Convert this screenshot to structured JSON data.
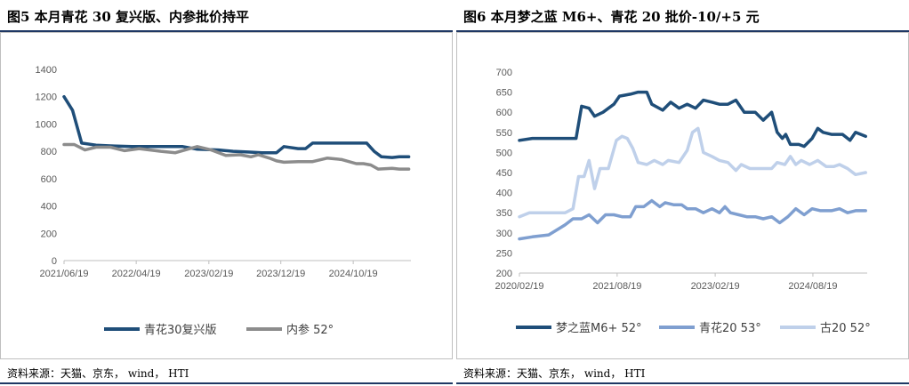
{
  "charts": [
    {
      "title": "图5   本月青花 30 复兴版、内参批价持平",
      "source": "资料来源：天猫、京东， wind， HTI",
      "chart_data": {
        "type": "line",
        "x_tick_labels": [
          "2021/06/19",
          "2022/04/19",
          "2023/02/19",
          "2023/12/19",
          "2024/10/19"
        ],
        "x_range": [
          "2021/06/19",
          "2025/06/19"
        ],
        "ylim": [
          0,
          1400
        ],
        "y_ticks": [
          0,
          200,
          400,
          600,
          800,
          1000,
          1200,
          1400
        ],
        "grid": false,
        "legend_position": "bottom",
        "series": [
          {
            "name": "青花30复兴版",
            "color": "#1f4e79",
            "points": [
              [
                "2021/06/19",
                1200
              ],
              [
                "2021/07/25",
                1100
              ],
              [
                "2021/09/01",
                860
              ],
              [
                "2021/11/01",
                845
              ],
              [
                "2022/01/01",
                840
              ],
              [
                "2022/04/01",
                835
              ],
              [
                "2022/07/01",
                835
              ],
              [
                "2022/11/01",
                835
              ],
              [
                "2023/01/01",
                815
              ],
              [
                "2023/04/01",
                810
              ],
              [
                "2023/06/01",
                800
              ],
              [
                "2023/08/01",
                795
              ],
              [
                "2023/10/01",
                790
              ],
              [
                "2023/12/01",
                790
              ],
              [
                "2024/01/01",
                835
              ],
              [
                "2024/03/01",
                820
              ],
              [
                "2024/04/01",
                820
              ],
              [
                "2024/05/01",
                860
              ],
              [
                "2024/07/01",
                860
              ],
              [
                "2024/09/01",
                860
              ],
              [
                "2024/11/01",
                860
              ],
              [
                "2024/12/15",
                860
              ],
              [
                "2025/01/15",
                800
              ],
              [
                "2025/02/15",
                760
              ],
              [
                "2025/04/01",
                755
              ],
              [
                "2025/05/01",
                760
              ],
              [
                "2025/06/10",
                760
              ]
            ]
          },
          {
            "name": "内参 52°",
            "color": "#8c8c8c",
            "points": [
              [
                "2021/06/19",
                850
              ],
              [
                "2021/08/01",
                850
              ],
              [
                "2021/09/15",
                810
              ],
              [
                "2021/11/01",
                830
              ],
              [
                "2022/01/01",
                830
              ],
              [
                "2022/03/01",
                805
              ],
              [
                "2022/05/01",
                820
              ],
              [
                "2022/08/01",
                800
              ],
              [
                "2022/10/01",
                790
              ],
              [
                "2022/12/01",
                820
              ],
              [
                "2023/01/01",
                835
              ],
              [
                "2023/03/01",
                810
              ],
              [
                "2023/05/01",
                770
              ],
              [
                "2023/07/01",
                775
              ],
              [
                "2023/08/15",
                760
              ],
              [
                "2023/09/15",
                775
              ],
              [
                "2023/11/01",
                750
              ],
              [
                "2023/12/01",
                730
              ],
              [
                "2024/01/01",
                720
              ],
              [
                "2024/03/01",
                725
              ],
              [
                "2024/05/01",
                725
              ],
              [
                "2024/07/01",
                750
              ],
              [
                "2024/09/01",
                740
              ],
              [
                "2024/11/01",
                710
              ],
              [
                "2024/12/01",
                710
              ],
              [
                "2025/01/01",
                700
              ],
              [
                "2025/02/01",
                670
              ],
              [
                "2025/04/01",
                675
              ],
              [
                "2025/05/01",
                670
              ],
              [
                "2025/06/10",
                670
              ]
            ]
          }
        ]
      }
    },
    {
      "title": "图6   本月梦之蓝 M6+、青花 20 批价-10/+5 元",
      "source": "资料来源：天猫、京东， wind， HTI",
      "chart_data": {
        "type": "line",
        "x_tick_labels": [
          "2020/02/19",
          "2021/08/19",
          "2023/02/19",
          "2024/08/19"
        ],
        "x_range": [
          "2020/02/19",
          "2025/06/19"
        ],
        "ylim": [
          200,
          700
        ],
        "y_ticks": [
          200,
          250,
          300,
          350,
          400,
          450,
          500,
          550,
          600,
          650,
          700
        ],
        "grid": false,
        "legend_position": "bottom",
        "series": [
          {
            "name": "梦之蓝M6+ 52°",
            "color": "#1f4e79",
            "points": [
              [
                "2020/02/19",
                530
              ],
              [
                "2020/05/01",
                535
              ],
              [
                "2020/09/01",
                535
              ],
              [
                "2021/01/01",
                535
              ],
              [
                "2021/02/01",
                615
              ],
              [
                "2021/03/15",
                610
              ],
              [
                "2021/04/15",
                590
              ],
              [
                "2021/06/01",
                600
              ],
              [
                "2021/08/01",
                620
              ],
              [
                "2021/09/01",
                640
              ],
              [
                "2021/11/01",
                645
              ],
              [
                "2021/12/15",
                650
              ],
              [
                "2022/02/01",
                650
              ],
              [
                "2022/03/01",
                620
              ],
              [
                "2022/05/01",
                605
              ],
              [
                "2022/06/15",
                625
              ],
              [
                "2022/08/01",
                610
              ],
              [
                "2022/09/15",
                620
              ],
              [
                "2022/11/01",
                610
              ],
              [
                "2022/12/15",
                630
              ],
              [
                "2023/02/01",
                625
              ],
              [
                "2023/03/15",
                620
              ],
              [
                "2023/05/01",
                620
              ],
              [
                "2023/06/15",
                630
              ],
              [
                "2023/08/01",
                600
              ],
              [
                "2023/10/01",
                600
              ],
              [
                "2023/11/15",
                580
              ],
              [
                "2024/01/01",
                600
              ],
              [
                "2024/02/01",
                550
              ],
              [
                "2024/03/01",
                535
              ],
              [
                "2024/03/20",
                545
              ],
              [
                "2024/04/15",
                520
              ],
              [
                "2024/06/01",
                520
              ],
              [
                "2024/07/01",
                515
              ],
              [
                "2024/08/15",
                535
              ],
              [
                "2024/09/15",
                560
              ],
              [
                "2024/10/15",
                550
              ],
              [
                "2024/12/01",
                545
              ],
              [
                "2025/02/01",
                545
              ],
              [
                "2025/03/15",
                530
              ],
              [
                "2025/04/15",
                550
              ],
              [
                "2025/06/10",
                540
              ]
            ]
          },
          {
            "name": "青花20 53°",
            "color": "#7f9fd0",
            "points": [
              [
                "2020/02/19",
                285
              ],
              [
                "2020/05/01",
                290
              ],
              [
                "2020/08/01",
                295
              ],
              [
                "2020/11/01",
                320
              ],
              [
                "2020/12/15",
                335
              ],
              [
                "2021/02/01",
                335
              ],
              [
                "2021/03/15",
                345
              ],
              [
                "2021/05/01",
                325
              ],
              [
                "2021/06/15",
                345
              ],
              [
                "2021/08/01",
                345
              ],
              [
                "2021/09/15",
                340
              ],
              [
                "2021/11/01",
                340
              ],
              [
                "2021/12/01",
                365
              ],
              [
                "2022/01/15",
                365
              ],
              [
                "2022/03/01",
                380
              ],
              [
                "2022/04/15",
                365
              ],
              [
                "2022/05/15",
                375
              ],
              [
                "2022/07/01",
                370
              ],
              [
                "2022/08/15",
                370
              ],
              [
                "2022/09/15",
                360
              ],
              [
                "2022/11/01",
                360
              ],
              [
                "2022/12/15",
                350
              ],
              [
                "2023/02/01",
                360
              ],
              [
                "2023/03/15",
                350
              ],
              [
                "2023/04/15",
                365
              ],
              [
                "2023/05/15",
                350
              ],
              [
                "2023/07/01",
                345
              ],
              [
                "2023/08/15",
                340
              ],
              [
                "2023/10/01",
                340
              ],
              [
                "2023/11/15",
                335
              ],
              [
                "2024/01/01",
                340
              ],
              [
                "2024/02/15",
                325
              ],
              [
                "2024/04/01",
                340
              ],
              [
                "2024/05/15",
                360
              ],
              [
                "2024/07/01",
                345
              ],
              [
                "2024/08/15",
                360
              ],
              [
                "2024/10/01",
                355
              ],
              [
                "2024/12/01",
                355
              ],
              [
                "2025/01/15",
                360
              ],
              [
                "2025/03/01",
                350
              ],
              [
                "2025/04/15",
                355
              ],
              [
                "2025/06/10",
                355
              ]
            ]
          },
          {
            "name": "古20 52°",
            "color": "#bfd0ea",
            "points": [
              [
                "2020/02/19",
                340
              ],
              [
                "2020/04/15",
                350
              ],
              [
                "2020/08/01",
                350
              ],
              [
                "2020/11/01",
                350
              ],
              [
                "2020/12/15",
                360
              ],
              [
                "2021/01/15",
                440
              ],
              [
                "2021/02/15",
                440
              ],
              [
                "2021/03/15",
                480
              ],
              [
                "2021/04/15",
                410
              ],
              [
                "2021/05/15",
                460
              ],
              [
                "2021/07/01",
                460
              ],
              [
                "2021/08/15",
                530
              ],
              [
                "2021/09/15",
                540
              ],
              [
                "2021/10/15",
                535
              ],
              [
                "2021/11/15",
                510
              ],
              [
                "2021/12/15",
                475
              ],
              [
                "2022/02/01",
                470
              ],
              [
                "2022/03/15",
                480
              ],
              [
                "2022/05/01",
                470
              ],
              [
                "2022/06/01",
                480
              ],
              [
                "2022/08/01",
                475
              ],
              [
                "2022/09/15",
                505
              ],
              [
                "2022/10/15",
                550
              ],
              [
                "2022/11/15",
                560
              ],
              [
                "2022/12/15",
                500
              ],
              [
                "2023/02/01",
                490
              ],
              [
                "2023/03/15",
                480
              ],
              [
                "2023/05/01",
                475
              ],
              [
                "2023/06/15",
                455
              ],
              [
                "2023/07/15",
                470
              ],
              [
                "2023/09/01",
                460
              ],
              [
                "2023/11/01",
                460
              ],
              [
                "2024/01/01",
                460
              ],
              [
                "2024/02/01",
                475
              ],
              [
                "2024/03/15",
                470
              ],
              [
                "2024/04/15",
                490
              ],
              [
                "2024/05/15",
                470
              ],
              [
                "2024/06/15",
                480
              ],
              [
                "2024/08/01",
                470
              ],
              [
                "2024/09/15",
                480
              ],
              [
                "2024/11/01",
                465
              ],
              [
                "2024/12/15",
                465
              ],
              [
                "2025/01/15",
                470
              ],
              [
                "2025/03/01",
                460
              ],
              [
                "2025/04/15",
                445
              ],
              [
                "2025/06/10",
                450
              ]
            ]
          }
        ]
      }
    }
  ]
}
